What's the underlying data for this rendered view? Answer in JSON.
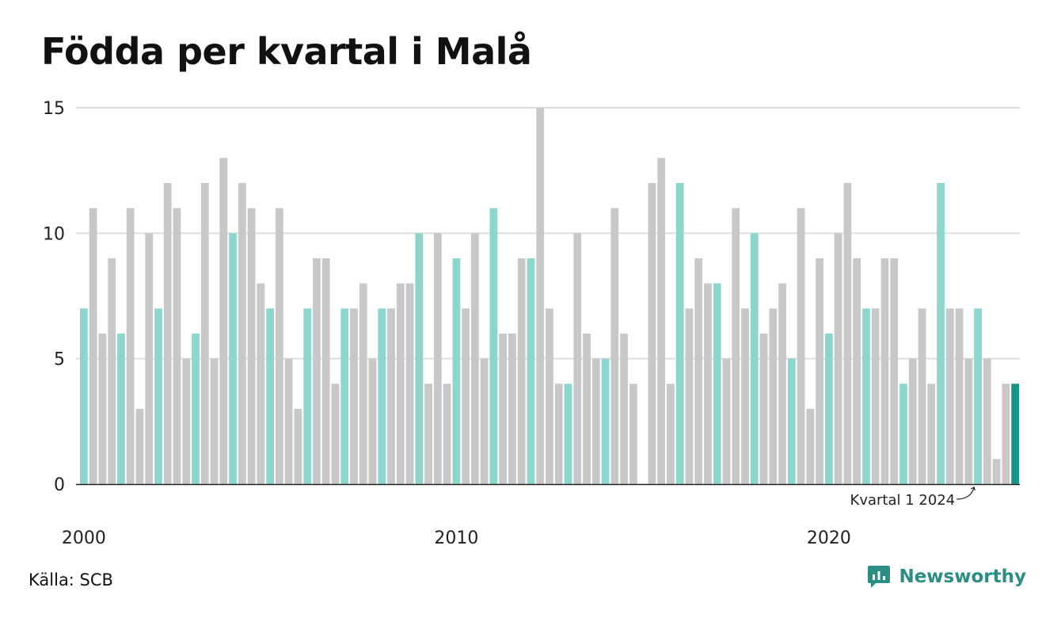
{
  "title": "Födda per kvartal i Malå",
  "source": "Källa: SCB",
  "brand": {
    "name": "Newsworthy",
    "icon": "newsworthy-logo-icon"
  },
  "colors": {
    "default": "#c8c8c8",
    "q1": "#8dd6cd",
    "latest": "#16948a",
    "grid": "#dedede",
    "axis": "#222222"
  },
  "chart_data": {
    "type": "bar",
    "title": "Födda per kvartal i Malå",
    "xlabel": "",
    "ylabel": "",
    "ylim": [
      0,
      15
    ],
    "yticks": [
      0,
      5,
      10,
      15
    ],
    "x_tick_labels": [
      "2000",
      "2010",
      "2020"
    ],
    "x_range": [
      "2000 K1",
      "2024 K1"
    ],
    "grid": true,
    "annotation": {
      "text": "Kvartal 1 2024",
      "target": "2024 K1"
    },
    "highlight_rule": "Kvartal 1 of each year shown in teal; latest quarter in dark teal",
    "series": [
      {
        "values": [
          7,
          11,
          6,
          9,
          6,
          11,
          3,
          10,
          7,
          12,
          11,
          5,
          6,
          12,
          5,
          13,
          10,
          12,
          11,
          8,
          7,
          11,
          5,
          3,
          7,
          9,
          9,
          4,
          7,
          7,
          8,
          5,
          7,
          7,
          8,
          8,
          10,
          4,
          10,
          4,
          9,
          7,
          10,
          5,
          11,
          6,
          6,
          9,
          9,
          15,
          7,
          4,
          4,
          10,
          6,
          5,
          5,
          11,
          6,
          4,
          0,
          12,
          13,
          4,
          12,
          7,
          9,
          8,
          8,
          5,
          11,
          7,
          10,
          6,
          7,
          8,
          5,
          11,
          3,
          9,
          6,
          10,
          12,
          9,
          7,
          7,
          9,
          9,
          4,
          5,
          7,
          4,
          12,
          7,
          7,
          5,
          7,
          5,
          1,
          4,
          4
        ]
      }
    ]
  }
}
